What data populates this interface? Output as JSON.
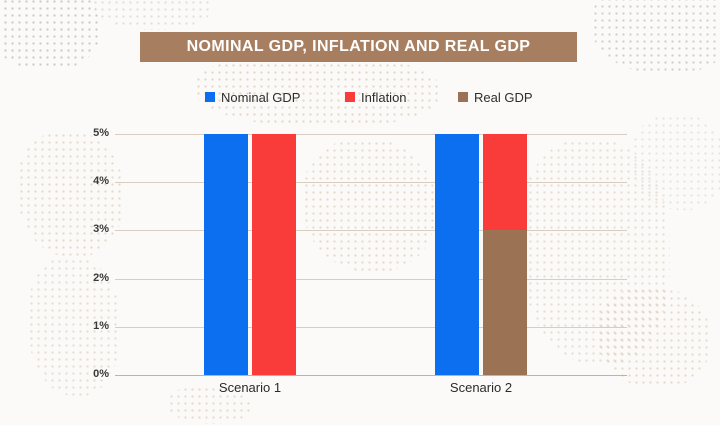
{
  "theme": {
    "background": "#fbfaf8",
    "banner_bg": "#a87e60",
    "banner_text": "#ffffff",
    "gridline_color": "#d8cdc0",
    "axis_line_color": "#bfb3a6",
    "tick_label_color": "#3a3a3a",
    "category_label_color": "#2b2b2b",
    "legend_text_color": "#2e2e2e"
  },
  "chart_data": {
    "type": "bar",
    "title": "NOMINAL GDP, INFLATION AND REAL GDP",
    "categories": [
      "Scenario 1",
      "Scenario 2"
    ],
    "ylim": [
      0,
      5
    ],
    "y_ticks": [
      0,
      1,
      2,
      3,
      4,
      5
    ],
    "y_tick_labels": [
      "0%",
      "1%",
      "2%",
      "3%",
      "4%",
      "5%"
    ],
    "grid": true,
    "legend_position": "top",
    "legend": [
      {
        "label": "Nominal GDP",
        "color": "#0b6ff0"
      },
      {
        "label": "Inflation",
        "color": "#f93b39"
      },
      {
        "label": "Real GDP",
        "color": "#9b7253"
      }
    ],
    "series": [
      {
        "name": "Nominal GDP",
        "values": [
          5,
          5
        ]
      },
      {
        "name": "Inflation",
        "values": [
          5,
          2
        ]
      },
      {
        "name": "Real GDP",
        "values": [
          0,
          3
        ]
      }
    ],
    "groups": [
      {
        "category": "Scenario 1",
        "bars": [
          {
            "segments": [
              {
                "series": "Nominal GDP",
                "value": 5,
                "color": "#0b6ff0"
              }
            ]
          },
          {
            "segments": [
              {
                "series": "Inflation",
                "value": 5,
                "color": "#f93b39"
              }
            ]
          }
        ]
      },
      {
        "category": "Scenario 2",
        "bars": [
          {
            "segments": [
              {
                "series": "Nominal GDP",
                "value": 5,
                "color": "#0b6ff0"
              }
            ]
          },
          {
            "segments": [
              {
                "series": "Real GDP",
                "value": 3,
                "color": "#9b7253"
              },
              {
                "series": "Inflation",
                "value": 2,
                "color": "#f93b39"
              }
            ]
          }
        ]
      }
    ]
  }
}
